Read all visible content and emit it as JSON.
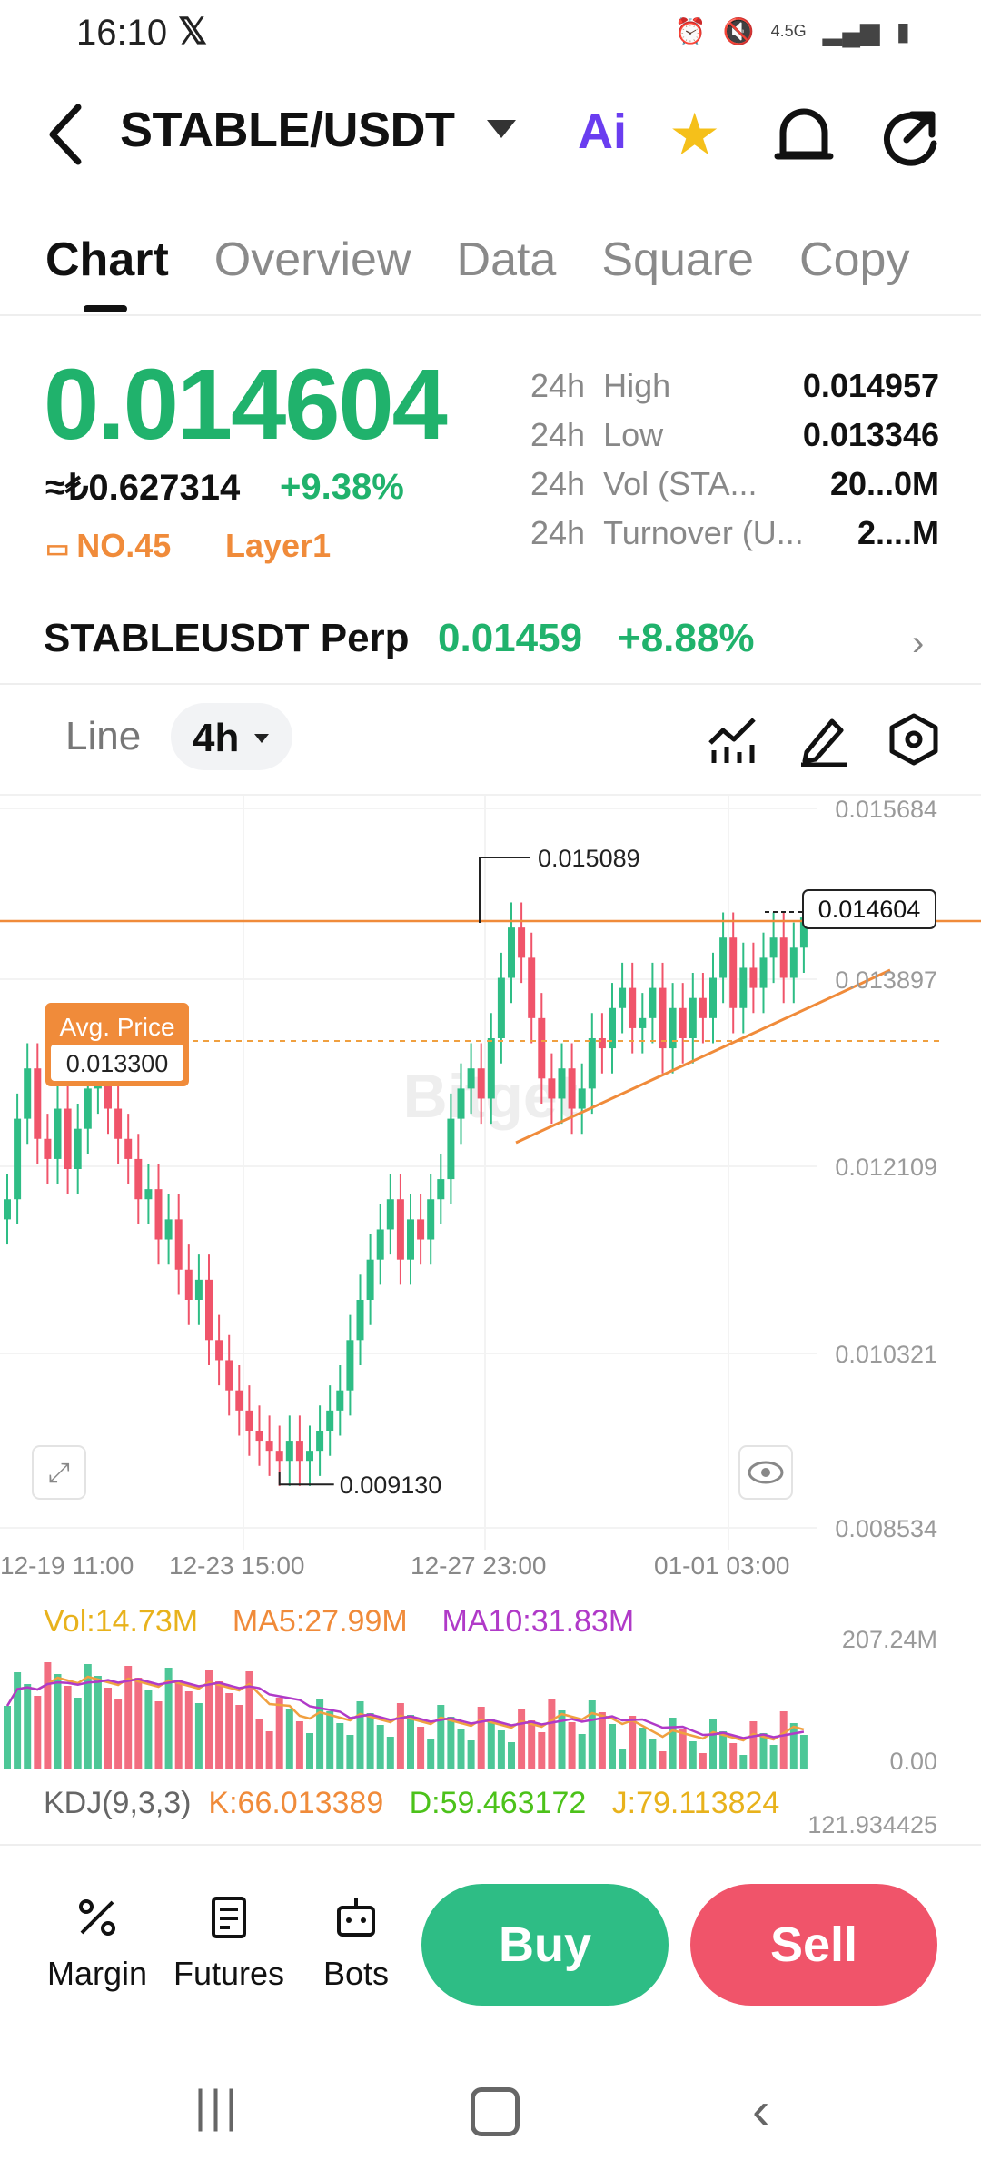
{
  "status": {
    "time": "16:10",
    "x_icon": "x-logo-icon",
    "network": "4.5G"
  },
  "header": {
    "pair": "STABLE/USDT",
    "ai_label": "Ai"
  },
  "tabs": [
    {
      "label": "Chart",
      "active": true
    },
    {
      "label": "Overview"
    },
    {
      "label": "Data"
    },
    {
      "label": "Square"
    },
    {
      "label": "Copy"
    }
  ],
  "ticker": {
    "price": "0.014604",
    "fiat": "≈₺0.627314",
    "change": "+9.38%",
    "rank": "NO.45",
    "tag": "Layer1",
    "stats": [
      {
        "period": "24h",
        "key": "High",
        "value": "0.014957"
      },
      {
        "period": "24h",
        "key": "Low",
        "value": "0.013346"
      },
      {
        "period": "24h",
        "key": "Vol (STA...",
        "value": "20...0M"
      },
      {
        "period": "24h",
        "key": "Turnover (U...",
        "value": "2....M"
      }
    ]
  },
  "perp": {
    "name": "STABLEUSDT Perp",
    "price": "0.01459",
    "change": "+8.88%"
  },
  "chart_controls": {
    "type": "Line",
    "interval": "4h"
  },
  "chart_data": {
    "type": "candlestick",
    "y_ticks": [
      "0.015684",
      "0.013897",
      "0.012109",
      "0.010321",
      "0.008534"
    ],
    "x_ticks": [
      "12-19 11:00",
      "12-23 15:00",
      "12-27 23:00",
      "01-01 03:00"
    ],
    "annotations": {
      "high": "0.015089",
      "low": "0.009130",
      "current": "0.014604",
      "avg_label": "Avg. Price",
      "avg_value": "0.013300"
    },
    "watermark": "Bitget",
    "closes": [
      0.0118,
      0.0126,
      0.0131,
      0.0124,
      0.0122,
      0.0127,
      0.0121,
      0.0125,
      0.0129,
      0.0133,
      0.0127,
      0.0124,
      0.0122,
      0.0118,
      0.0119,
      0.0114,
      0.0116,
      0.0111,
      0.0108,
      0.011,
      0.0104,
      0.0102,
      0.0099,
      0.0097,
      0.0095,
      0.0094,
      0.0093,
      0.0092,
      0.0094,
      0.0092,
      0.0093,
      0.0095,
      0.0097,
      0.0099,
      0.0104,
      0.0108,
      0.0112,
      0.0115,
      0.0118,
      0.0112,
      0.0116,
      0.0114,
      0.0118,
      0.012,
      0.0126,
      0.0129,
      0.0131,
      0.0128,
      0.0134,
      0.014,
      0.0145,
      0.0142,
      0.0136,
      0.013,
      0.0128,
      0.0131,
      0.0127,
      0.0129,
      0.0134,
      0.0133,
      0.0137,
      0.0139,
      0.0135,
      0.0136,
      0.0139,
      0.0133,
      0.0137,
      0.0134,
      0.0138,
      0.0136,
      0.014,
      0.0144,
      0.0137,
      0.0141,
      0.0139,
      0.0142,
      0.0144,
      0.014,
      0.0143,
      0.0146
    ]
  },
  "volume": {
    "vol": "Vol:14.73M",
    "ma5": "MA5:27.99M",
    "ma10": "MA10:31.83M",
    "y_top": "207.24M",
    "y_bottom": "0.00"
  },
  "kdj": {
    "label": "KDJ(9,3,3)",
    "k": "K:66.013389",
    "d": "D:59.463172",
    "j": "J:79.113824",
    "y_top": "121.934425"
  },
  "actions": {
    "margin": "Margin",
    "futures": "Futures",
    "bots": "Bots",
    "buy": "Buy",
    "sell": "Sell"
  },
  "colors": {
    "up": "#2ebd85",
    "down": "#f0546a",
    "accent": "#f08b3a",
    "ma5": "#f0a040",
    "ma10": "#b03ac8"
  }
}
